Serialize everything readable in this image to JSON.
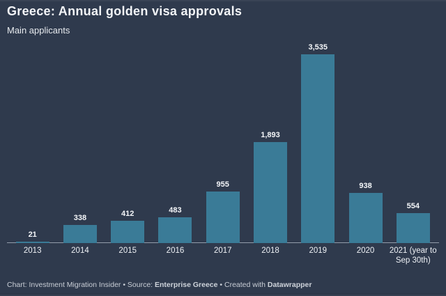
{
  "header": {
    "title": "Greece: Annual golden visa approvals",
    "subtitle": "Main applicants"
  },
  "chart_data": {
    "type": "bar",
    "title": "Greece: Annual golden visa approvals",
    "subtitle": "Main applicants",
    "categories": [
      "2013",
      "2014",
      "2015",
      "2016",
      "2017",
      "2018",
      "2019",
      "2020",
      "2021 (year to\nSep 30th)"
    ],
    "values": [
      21,
      338,
      412,
      483,
      955,
      1893,
      3535,
      938,
      554
    ],
    "value_labels": [
      "21",
      "338",
      "412",
      "483",
      "955",
      "1,893",
      "3,535",
      "938",
      "554"
    ],
    "xlabel": "",
    "ylabel": "",
    "ylim": [
      0,
      3535
    ],
    "grid": false,
    "legend": false,
    "bar_color": "#3a7b97",
    "background_color": "#2f3a4d"
  },
  "footer": {
    "credit_prefix": "Chart: Investment Migration Insider • Source: ",
    "source_name": "Enterprise Greece",
    "created_with": " • Created with ",
    "brand": "Datawrapper"
  }
}
